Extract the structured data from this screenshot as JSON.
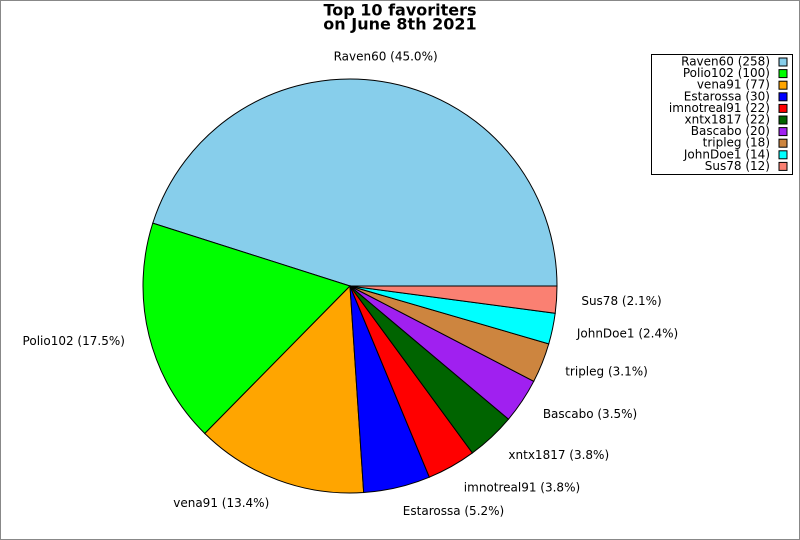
{
  "chart_data": {
    "type": "pie",
    "title": [
      "Top 10 favoriters",
      "on June 8th 2021"
    ],
    "categories": [
      "Raven60 (258)",
      "Polio102 (100)",
      "vena91 (77)",
      "Estarossa (30)",
      "imnotreal91 (22)",
      "xntx1817 (22)",
      "Bascabo (20)",
      "tripleg (18)",
      "JohnDoe1 (14)",
      "Sus78 (12)"
    ],
    "values": [
      45.0,
      17.5,
      13.4,
      5.2,
      3.8,
      3.8,
      3.5,
      3.1,
      2.4,
      2.1
    ],
    "value_labels": [
      "Raven60 (45.0%)",
      "Polio102 (17.5%)",
      "vena91 (13.4%)",
      "Estarossa (5.2%)",
      "imnotreal91 (3.8%)",
      "xntx1817 (3.8%)",
      "Bascabo (3.5%)",
      "tripleg (3.1%)",
      "JohnDoe1 (2.4%)",
      "Sus78 (2.1%)"
    ],
    "colors": [
      "#87ceeb",
      "#00ff00",
      "#ffa500",
      "#0000ff",
      "#ff0000",
      "#006400",
      "#a020f0",
      "#cd853f",
      "#00ffff",
      "#fa8072"
    ],
    "legend": "upper right"
  }
}
